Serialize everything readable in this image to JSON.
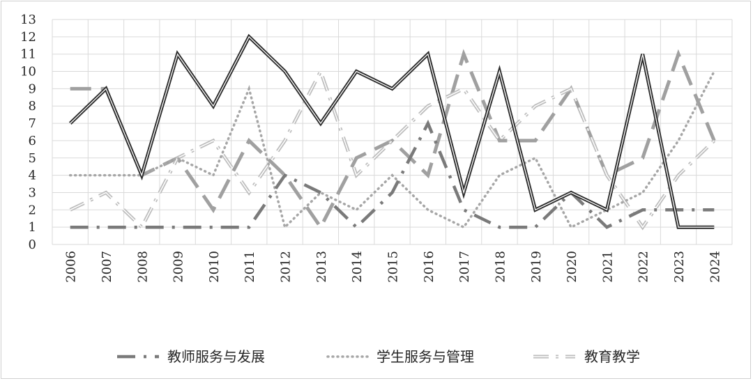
{
  "chart_data": {
    "type": "line",
    "title": "",
    "xlabel": "",
    "ylabel": "",
    "categories": [
      "2006",
      "2007",
      "2008",
      "2009",
      "2010",
      "2011",
      "2012",
      "2013",
      "2014",
      "2015",
      "2016",
      "2017",
      "2018",
      "2019",
      "2020",
      "2021",
      "2022",
      "2023",
      "2024"
    ],
    "ylim": [
      0,
      13
    ],
    "yticks": [
      "0",
      "1",
      "2",
      "3",
      "4",
      "5",
      "6",
      "7",
      "8",
      "9",
      "10",
      "11",
      "12",
      "13"
    ],
    "grid": true,
    "legend_position": "bottom",
    "series": [
      {
        "name": "",
        "style": "solid-double",
        "color": "#2b2b2b",
        "values": [
          7,
          9,
          4,
          11,
          8,
          12,
          10,
          7,
          10,
          9,
          11,
          3,
          10,
          2,
          3,
          2,
          11,
          1,
          1
        ]
      },
      {
        "name": "教师服务与发展",
        "style": "long-dash-dot",
        "color": "#7a7a7a",
        "values": [
          1,
          1,
          1,
          1,
          1,
          1,
          4,
          3,
          1,
          3,
          7,
          2,
          1,
          1,
          3,
          1,
          2,
          2,
          2
        ]
      },
      {
        "name": "学生服务与管理",
        "style": "dotted",
        "color": "#a6a6a6",
        "values": [
          4,
          4,
          4,
          5,
          4,
          9,
          1,
          3,
          2,
          4,
          2,
          1,
          4,
          5,
          1,
          2,
          3,
          6,
          10
        ]
      },
      {
        "name": "教育教学",
        "style": "double-dash-dot",
        "color": "#bdbdbd",
        "values": [
          2,
          3,
          1,
          5,
          6,
          3,
          6,
          10,
          4,
          6,
          8,
          9,
          6,
          8,
          9,
          4,
          1,
          4,
          6
        ]
      },
      {
        "name": "",
        "style": "long-dash",
        "color": "#a0a0a0",
        "values": [
          9,
          9,
          4,
          5,
          2,
          6,
          4,
          1,
          5,
          6,
          4,
          11,
          6,
          6,
          9,
          4,
          5,
          11,
          6
        ]
      }
    ]
  },
  "legend": {
    "items": [
      "教师服务与发展",
      "学生服务与管理",
      "教育教学"
    ]
  }
}
